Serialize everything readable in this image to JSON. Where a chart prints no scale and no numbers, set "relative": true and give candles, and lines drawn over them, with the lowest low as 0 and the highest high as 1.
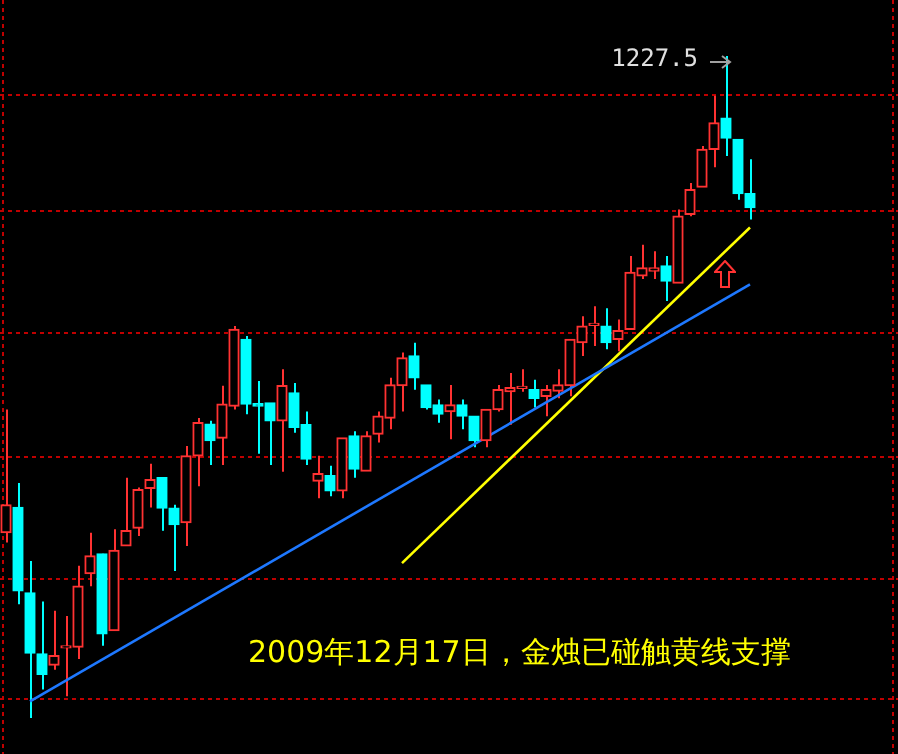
{
  "chart_data": {
    "type": "candlestick",
    "relative": true,
    "categories": [
      null,
      null,
      null,
      null,
      null,
      null,
      null,
      null,
      null,
      null,
      null,
      null,
      null,
      null,
      null,
      null,
      null,
      null,
      null,
      null,
      null,
      null,
      null,
      null,
      null,
      null,
      null,
      null,
      null,
      null,
      null,
      null,
      null,
      null,
      null,
      null,
      null,
      null,
      null,
      null,
      null,
      null,
      null,
      null,
      null,
      null,
      null,
      null,
      null,
      null,
      null,
      null,
      null,
      null,
      null,
      null,
      null,
      null,
      null,
      null,
      null,
      null,
      null
    ],
    "ohlc": [
      [
        0.28,
        0.466,
        0.265,
        0.322
      ],
      [
        0.318,
        0.355,
        0.172,
        0.192
      ],
      [
        0.189,
        0.237,
        0,
        0.098
      ],
      [
        0.097,
        0.176,
        0.043,
        0.066
      ],
      [
        0.08,
        0.162,
        0.073,
        0.094
      ],
      [
        0.106,
        0.154,
        0.033,
        0.109
      ],
      [
        0.107,
        0.23,
        0.089,
        0.199
      ],
      [
        0.218,
        0.28,
        0.199,
        0.245
      ],
      [
        0.248,
        0.248,
        0.109,
        0.127
      ],
      [
        0.132,
        0.285,
        0.132,
        0.253
      ],
      [
        0.26,
        0.363,
        0.26,
        0.283
      ],
      [
        0.287,
        0.348,
        0.275,
        0.345
      ],
      [
        0.347,
        0.384,
        0.318,
        0.36
      ],
      [
        0.363,
        0.363,
        0.283,
        0.317
      ],
      [
        0.317,
        0.322,
        0.222,
        0.292
      ],
      [
        0.295,
        0.411,
        0.26,
        0.396
      ],
      [
        0.396,
        0.453,
        0.35,
        0.446
      ],
      [
        0.444,
        0.449,
        0.382,
        0.419
      ],
      [
        0.423,
        0.502,
        0.382,
        0.474
      ],
      [
        0.471,
        0.592,
        0.466,
        0.587
      ],
      [
        0.572,
        0.577,
        0.459,
        0.474
      ],
      [
        0.475,
        0.509,
        0.399,
        0.471
      ],
      [
        0.476,
        0.476,
        0.382,
        0.449
      ],
      [
        0.449,
        0.527,
        0.372,
        0.502
      ],
      [
        0.491,
        0.506,
        0.431,
        0.439
      ],
      [
        0.443,
        0.463,
        0.382,
        0.391
      ],
      [
        0.358,
        0.396,
        0.332,
        0.369
      ],
      [
        0.366,
        0.381,
        0.335,
        0.343
      ],
      [
        0.343,
        0.423,
        0.332,
        0.423
      ],
      [
        0.426,
        0.433,
        0.363,
        0.376
      ],
      [
        0.373,
        0.433,
        0.373,
        0.426
      ],
      [
        0.429,
        0.463,
        0.416,
        0.456
      ],
      [
        0.453,
        0.514,
        0.436,
        0.503
      ],
      [
        0.502,
        0.552,
        0.463,
        0.544
      ],
      [
        0.547,
        0.567,
        0.496,
        0.514
      ],
      [
        0.503,
        0.503,
        0.466,
        0.469
      ],
      [
        0.473,
        0.481,
        0.446,
        0.459
      ],
      [
        0.463,
        0.503,
        0.421,
        0.473
      ],
      [
        0.473,
        0.481,
        0.436,
        0.456
      ],
      [
        0.456,
        0.456,
        0.409,
        0.419
      ],
      [
        0.419,
        0.466,
        0.409,
        0.466
      ],
      [
        0.466,
        0.503,
        0.463,
        0.496
      ],
      [
        0.493,
        0.521,
        0.443,
        0.499
      ],
      [
        0.498,
        0.527,
        0.493,
        0.499
      ],
      [
        0.496,
        0.511,
        0.469,
        0.483
      ],
      [
        0.486,
        0.503,
        0.456,
        0.496
      ],
      [
        0.494,
        0.527,
        0.483,
        0.503
      ],
      [
        0.502,
        0.572,
        0.486,
        0.572
      ],
      [
        0.567,
        0.607,
        0.547,
        0.592
      ],
      [
        0.593,
        0.622,
        0.562,
        0.594
      ],
      [
        0.592,
        0.619,
        0.557,
        0.567
      ],
      [
        0.572,
        0.602,
        0.554,
        0.585
      ],
      [
        0.587,
        0.698,
        0.587,
        0.673
      ],
      [
        0.668,
        0.715,
        0.663,
        0.68
      ],
      [
        0.675,
        0.705,
        0.663,
        0.68
      ],
      [
        0.683,
        0.698,
        0.63,
        0.66
      ],
      [
        0.657,
        0.768,
        0.657,
        0.758
      ],
      [
        0.761,
        0.808,
        0.758,
        0.798
      ],
      [
        0.802,
        0.864,
        0.802,
        0.859
      ],
      [
        0.859,
        0.94,
        0.832,
        0.899
      ],
      [
        0.906,
        1,
        0.849,
        0.876
      ],
      [
        0.874,
        0.874,
        0.783,
        0.792
      ],
      [
        0.792,
        0.844,
        0.753,
        0.771
      ]
    ],
    "colors": [
      "#ff3232",
      "#00ffff",
      "#00ffff",
      "#00ffff",
      "#ff3232",
      "#ff3232",
      "#ff3232",
      "#ff3232",
      "#00ffff",
      "#ff3232",
      "#ff3232",
      "#ff3232",
      "#ff3232",
      "#00ffff",
      "#00ffff",
      "#ff3232",
      "#ff3232",
      "#00ffff",
      "#ff3232",
      "#ff3232",
      "#00ffff",
      "#00ffff",
      "#00ffff",
      "#ff3232",
      "#00ffff",
      "#00ffff",
      "#ff3232",
      "#00ffff",
      "#ff3232",
      "#00ffff",
      "#ff3232",
      "#ff3232",
      "#ff3232",
      "#ff3232",
      "#00ffff",
      "#00ffff",
      "#00ffff",
      "#ff3232",
      "#00ffff",
      "#00ffff",
      "#ff3232",
      "#ff3232",
      "#ff3232",
      "#ff3232",
      "#00ffff",
      "#ff3232",
      "#ff3232",
      "#ff3232",
      "#ff3232",
      "#ff3232",
      "#00ffff",
      "#ff3232",
      "#ff3232",
      "#ff3232",
      "#ff3232",
      "#00ffff",
      "#ff3232",
      "#ff3232",
      "#ff3232",
      "#ff3232",
      "#00ffff",
      "#00ffff",
      "#00ffff"
    ],
    "series": [
      {
        "type": "line",
        "color": "#1e78ff",
        "values": [
          null,
          null,
          0.025,
          null,
          null,
          null,
          null,
          null,
          null,
          null,
          null,
          null,
          null,
          null,
          null,
          null,
          null,
          null,
          null,
          null,
          null,
          null,
          null,
          null,
          null,
          null,
          null,
          null,
          null,
          null,
          null,
          null,
          null,
          null,
          null,
          null,
          null,
          null,
          null,
          null,
          null,
          null,
          null,
          null,
          null,
          null,
          null,
          null,
          null,
          null,
          null,
          null,
          null,
          null,
          null,
          null,
          null,
          null,
          null,
          null,
          null,
          null,
          0.655
        ]
      },
      {
        "type": "line",
        "color": "#ffff00",
        "values": [
          null,
          null,
          null,
          null,
          null,
          null,
          null,
          null,
          null,
          null,
          null,
          null,
          null,
          null,
          null,
          null,
          null,
          null,
          null,
          null,
          null,
          null,
          null,
          null,
          null,
          null,
          null,
          null,
          null,
          null,
          null,
          null,
          null,
          0.234,
          null,
          null,
          null,
          null,
          null,
          null,
          null,
          null,
          null,
          null,
          null,
          null,
          null,
          null,
          null,
          null,
          null,
          null,
          null,
          null,
          null,
          null,
          null,
          null,
          null,
          null,
          null,
          null,
          0.741
        ]
      }
    ],
    "ref_lines": [
      {
        "axis": "y",
        "value": 0.031,
        "color": "#c00000",
        "line_style": "dashed"
      },
      {
        "axis": "y",
        "value": 0.212,
        "color": "#c00000",
        "line_style": "dashed"
      },
      {
        "axis": "y",
        "value": 0.397,
        "color": "#c00000",
        "line_style": "dashed"
      },
      {
        "axis": "y",
        "value": 0.584,
        "color": "#c00000",
        "line_style": "dashed"
      },
      {
        "axis": "y",
        "value": 0.768,
        "color": "#c00000",
        "line_style": "dashed"
      },
      {
        "axis": "y",
        "value": 0.943,
        "color": "#c00000",
        "line_style": "dashed"
      }
    ],
    "annotations": [
      "1227.5",
      "2009年12月17日，金烛已碰触黄线支撑"
    ]
  }
}
